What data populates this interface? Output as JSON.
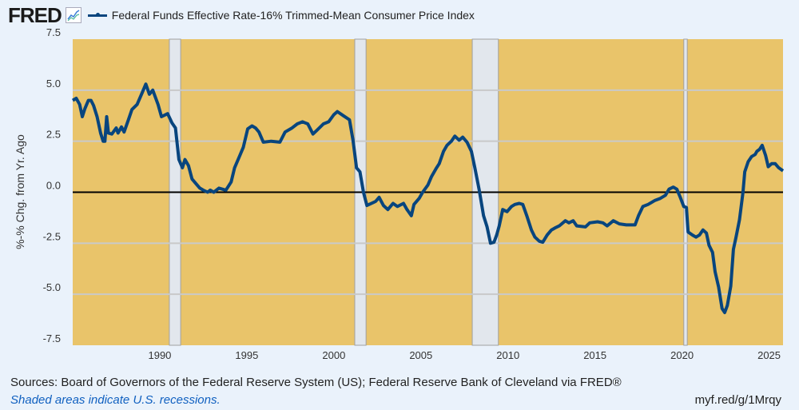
{
  "header": {
    "logo": "FRED",
    "legend_label": "Federal Funds Effective Rate-16% Trimmed-Mean Consumer Price Index"
  },
  "footer": {
    "sources": "Sources: Board of Governors of the Federal Reserve System (US); Federal Reserve Bank of Cleveland via FRED®",
    "shaded_note": "Shaded areas indicate U.S. recessions.",
    "url": "myf.red/g/1Mrqy"
  },
  "colors": {
    "line": "#08457e",
    "plot_bg": "#e9c46a",
    "recession": "#e2e7ed",
    "grid": "#c9c9c9",
    "zero": "#000000"
  },
  "chart_data": {
    "type": "line",
    "title": "Federal Funds Effective Rate-16% Trimmed-Mean Consumer Price Index",
    "xlabel": "",
    "ylabel": "%-% Chg. from Yr. Ago",
    "xlim": [
      1985.0,
      2025.8
    ],
    "ylim": [
      -7.5,
      7.5
    ],
    "yticks": [
      7.5,
      5.0,
      2.5,
      0.0,
      -2.5,
      -5.0,
      -7.5
    ],
    "ytick_labels": [
      "7.5",
      "5.0",
      "2.5",
      "0.0",
      "-2.5",
      "-5.0",
      "-7.5"
    ],
    "xticks": [
      1990,
      1995,
      2000,
      2005,
      2010,
      2015,
      2020,
      2025
    ],
    "xtick_labels": [
      "1990",
      "1995",
      "2000",
      "2005",
      "2010",
      "2015",
      "2020",
      "2025"
    ],
    "grid": true,
    "legend": "top-left",
    "recessions": [
      [
        1990.55,
        1991.2
      ],
      [
        2001.2,
        2001.85
      ],
      [
        2007.95,
        2009.45
      ],
      [
        2020.1,
        2020.3
      ]
    ],
    "series": [
      {
        "name": "Federal Funds Effective Rate-16% Trimmed-Mean Consumer Price Index",
        "points": [
          [
            1985.0,
            4.5
          ],
          [
            1985.2,
            4.6
          ],
          [
            1985.4,
            4.3
          ],
          [
            1985.55,
            3.7
          ],
          [
            1985.7,
            4.1
          ],
          [
            1985.9,
            4.5
          ],
          [
            1986.05,
            4.5
          ],
          [
            1986.2,
            4.25
          ],
          [
            1986.4,
            3.7
          ],
          [
            1986.6,
            2.9
          ],
          [
            1986.75,
            2.5
          ],
          [
            1986.85,
            2.5
          ],
          [
            1986.95,
            3.7
          ],
          [
            1987.05,
            2.9
          ],
          [
            1987.25,
            2.85
          ],
          [
            1987.5,
            3.15
          ],
          [
            1987.6,
            2.9
          ],
          [
            1987.8,
            3.2
          ],
          [
            1987.95,
            2.95
          ],
          [
            1988.2,
            3.55
          ],
          [
            1988.4,
            4.05
          ],
          [
            1988.7,
            4.3
          ],
          [
            1989.0,
            4.9
          ],
          [
            1989.2,
            5.3
          ],
          [
            1989.4,
            4.8
          ],
          [
            1989.6,
            5.0
          ],
          [
            1989.9,
            4.3
          ],
          [
            1990.1,
            3.7
          ],
          [
            1990.45,
            3.85
          ],
          [
            1990.7,
            3.4
          ],
          [
            1990.9,
            3.15
          ],
          [
            1991.1,
            1.6
          ],
          [
            1991.3,
            1.2
          ],
          [
            1991.45,
            1.6
          ],
          [
            1991.65,
            1.3
          ],
          [
            1991.85,
            0.65
          ],
          [
            1992.1,
            0.4
          ],
          [
            1992.3,
            0.2
          ],
          [
            1992.5,
            0.1
          ],
          [
            1992.75,
            0.0
          ],
          [
            1992.9,
            0.1
          ],
          [
            1993.1,
            0.0
          ],
          [
            1993.4,
            0.2
          ],
          [
            1993.8,
            0.1
          ],
          [
            1994.1,
            0.5
          ],
          [
            1994.3,
            1.2
          ],
          [
            1994.6,
            1.8
          ],
          [
            1994.8,
            2.2
          ],
          [
            1995.05,
            3.1
          ],
          [
            1995.3,
            3.25
          ],
          [
            1995.5,
            3.15
          ],
          [
            1995.7,
            2.95
          ],
          [
            1995.95,
            2.45
          ],
          [
            1996.4,
            2.5
          ],
          [
            1996.9,
            2.45
          ],
          [
            1997.2,
            2.95
          ],
          [
            1997.6,
            3.15
          ],
          [
            1997.9,
            3.35
          ],
          [
            1998.2,
            3.45
          ],
          [
            1998.5,
            3.35
          ],
          [
            1998.8,
            2.85
          ],
          [
            1999.05,
            3.05
          ],
          [
            1999.4,
            3.35
          ],
          [
            1999.7,
            3.45
          ],
          [
            2000.0,
            3.8
          ],
          [
            2000.2,
            3.95
          ],
          [
            2000.55,
            3.75
          ],
          [
            2000.9,
            3.55
          ],
          [
            2001.1,
            2.55
          ],
          [
            2001.3,
            1.2
          ],
          [
            2001.5,
            1.0
          ],
          [
            2001.7,
            0.0
          ],
          [
            2001.9,
            -0.65
          ],
          [
            2002.4,
            -0.45
          ],
          [
            2002.6,
            -0.25
          ],
          [
            2002.85,
            -0.65
          ],
          [
            2003.1,
            -0.85
          ],
          [
            2003.4,
            -0.55
          ],
          [
            2003.65,
            -0.7
          ],
          [
            2004.0,
            -0.55
          ],
          [
            2004.2,
            -0.85
          ],
          [
            2004.45,
            -1.15
          ],
          [
            2004.6,
            -0.6
          ],
          [
            2004.9,
            -0.3
          ],
          [
            2005.1,
            0.0
          ],
          [
            2005.4,
            0.35
          ],
          [
            2005.6,
            0.75
          ],
          [
            2005.9,
            1.2
          ],
          [
            2006.05,
            1.4
          ],
          [
            2006.3,
            2.0
          ],
          [
            2006.5,
            2.3
          ],
          [
            2006.75,
            2.5
          ],
          [
            2006.95,
            2.75
          ],
          [
            2007.2,
            2.55
          ],
          [
            2007.4,
            2.7
          ],
          [
            2007.65,
            2.45
          ],
          [
            2007.9,
            2.0
          ],
          [
            2008.1,
            1.2
          ],
          [
            2008.35,
            0.1
          ],
          [
            2008.6,
            -1.15
          ],
          [
            2008.8,
            -1.7
          ],
          [
            2009.0,
            -2.5
          ],
          [
            2009.2,
            -2.45
          ],
          [
            2009.35,
            -2.1
          ],
          [
            2009.5,
            -1.65
          ],
          [
            2009.7,
            -0.85
          ],
          [
            2009.95,
            -0.95
          ],
          [
            2010.2,
            -0.7
          ],
          [
            2010.4,
            -0.6
          ],
          [
            2010.65,
            -0.55
          ],
          [
            2010.85,
            -0.6
          ],
          [
            2011.1,
            -1.2
          ],
          [
            2011.35,
            -1.85
          ],
          [
            2011.55,
            -2.2
          ],
          [
            2011.8,
            -2.4
          ],
          [
            2012.0,
            -2.45
          ],
          [
            2012.25,
            -2.1
          ],
          [
            2012.5,
            -1.85
          ],
          [
            2012.7,
            -1.75
          ],
          [
            2012.95,
            -1.65
          ],
          [
            2013.3,
            -1.4
          ],
          [
            2013.5,
            -1.5
          ],
          [
            2013.75,
            -1.4
          ],
          [
            2013.95,
            -1.65
          ],
          [
            2014.45,
            -1.7
          ],
          [
            2014.7,
            -1.5
          ],
          [
            2015.15,
            -1.45
          ],
          [
            2015.45,
            -1.5
          ],
          [
            2015.7,
            -1.65
          ],
          [
            2016.05,
            -1.4
          ],
          [
            2016.4,
            -1.55
          ],
          [
            2016.8,
            -1.6
          ],
          [
            2017.3,
            -1.6
          ],
          [
            2017.5,
            -1.15
          ],
          [
            2017.75,
            -0.7
          ],
          [
            2018.05,
            -0.6
          ],
          [
            2018.45,
            -0.4
          ],
          [
            2018.75,
            -0.3
          ],
          [
            2019.05,
            -0.15
          ],
          [
            2019.25,
            0.15
          ],
          [
            2019.5,
            0.25
          ],
          [
            2019.7,
            0.15
          ],
          [
            2019.9,
            -0.25
          ],
          [
            2020.1,
            -0.7
          ],
          [
            2020.25,
            -0.75
          ],
          [
            2020.35,
            -1.95
          ],
          [
            2020.6,
            -2.1
          ],
          [
            2020.8,
            -2.2
          ],
          [
            2021.0,
            -2.1
          ],
          [
            2021.2,
            -1.85
          ],
          [
            2021.4,
            -2.0
          ],
          [
            2021.55,
            -2.6
          ],
          [
            2021.75,
            -2.95
          ],
          [
            2021.9,
            -3.9
          ],
          [
            2022.1,
            -4.65
          ],
          [
            2022.3,
            -5.7
          ],
          [
            2022.45,
            -5.9
          ],
          [
            2022.6,
            -5.55
          ],
          [
            2022.8,
            -4.6
          ],
          [
            2022.95,
            -2.8
          ],
          [
            2023.1,
            -2.2
          ],
          [
            2023.3,
            -1.35
          ],
          [
            2023.5,
            0.0
          ],
          [
            2023.6,
            1.0
          ],
          [
            2023.8,
            1.5
          ],
          [
            2024.0,
            1.75
          ],
          [
            2024.2,
            1.85
          ],
          [
            2024.3,
            2.0
          ],
          [
            2024.45,
            2.1
          ],
          [
            2024.6,
            2.3
          ],
          [
            2024.8,
            1.8
          ],
          [
            2024.95,
            1.25
          ],
          [
            2025.15,
            1.4
          ],
          [
            2025.35,
            1.4
          ],
          [
            2025.55,
            1.2
          ],
          [
            2025.8,
            1.05
          ]
        ]
      }
    ]
  }
}
